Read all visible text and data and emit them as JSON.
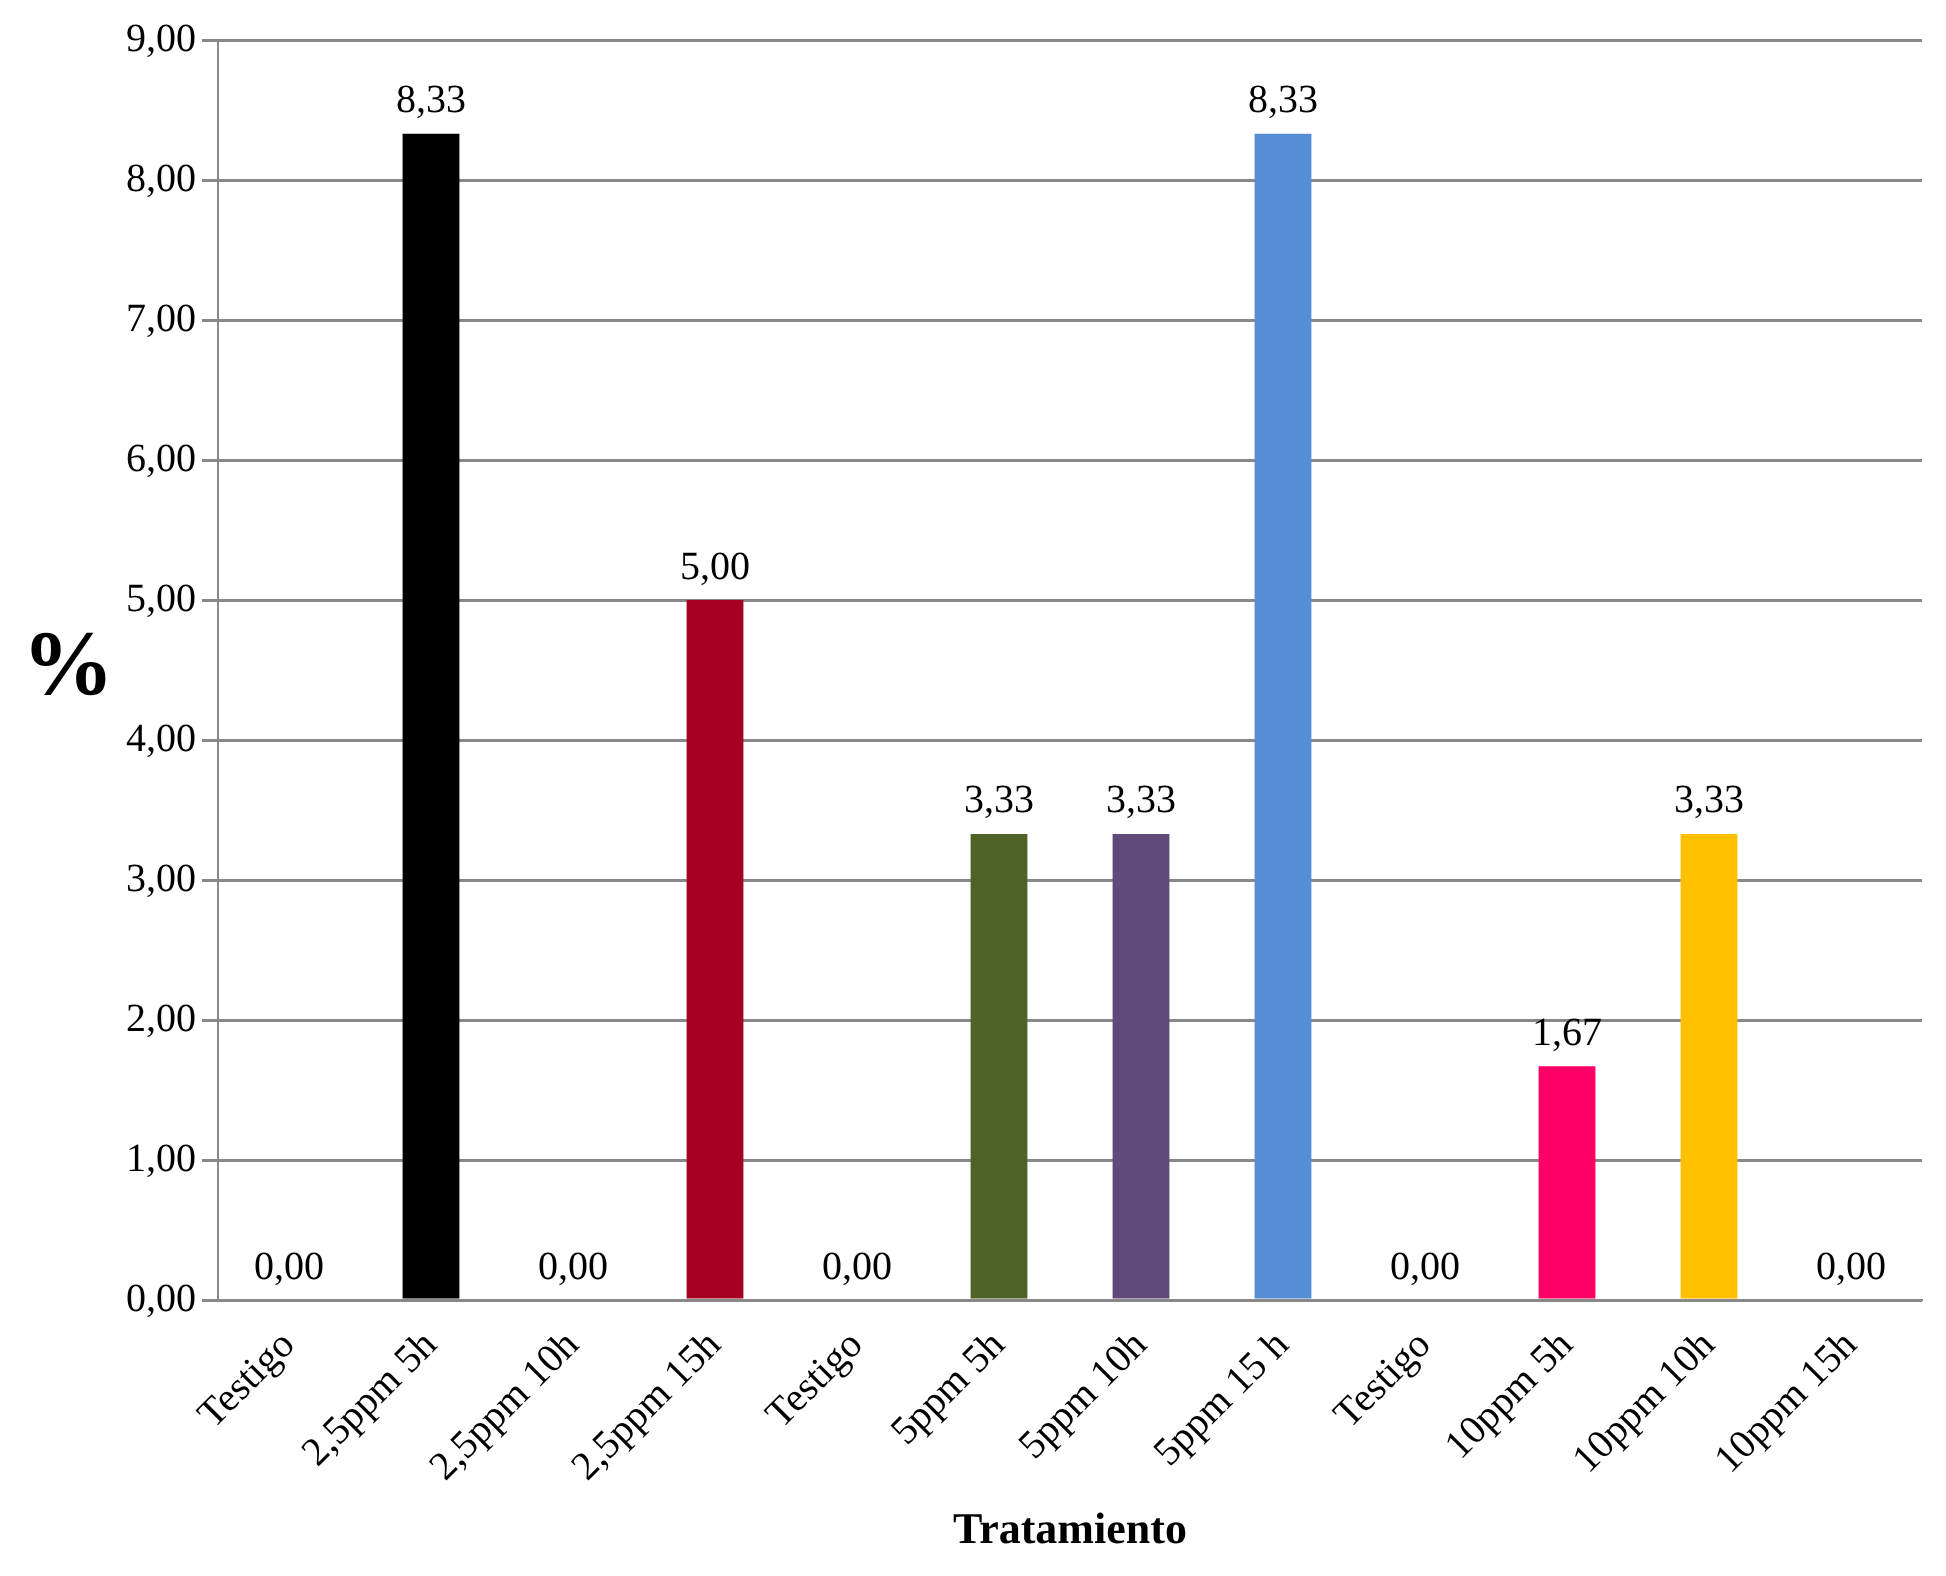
{
  "chart_data": {
    "type": "bar",
    "xlabel": "Tratamiento",
    "ylabel": "%",
    "categories": [
      "Testigo",
      "2,5ppm 5h",
      "2,5ppm 10h",
      "2,5ppm 15h",
      "Testigo",
      "5ppm 5h",
      "5ppm 10h",
      "5ppm 15 h",
      "Testigo",
      "10ppm 5h",
      "10ppm 10h",
      "10ppm 15h"
    ],
    "values": [
      0,
      8.33,
      0,
      5,
      0,
      3.33,
      3.33,
      8.33,
      0,
      1.67,
      3.33,
      0
    ],
    "colors": [
      "#c00000",
      "#000000",
      "#d0803a",
      "#a50021",
      "#c00000",
      "#4f6228",
      "#604a7b",
      "#558ed5",
      "#c00000",
      "#ff0066",
      "#ffc000",
      "#31b6d0"
    ],
    "value_labels": [
      "0,00",
      "8,33",
      "0,00",
      "5,00",
      "0,00",
      "3,33",
      "3,33",
      "8,33",
      "0,00",
      "1,67",
      "3,33",
      "0,00"
    ],
    "ylim": [
      0,
      9
    ],
    "yticks": [
      {
        "value": 0,
        "label": "0,00"
      },
      {
        "value": 1,
        "label": "1,00"
      },
      {
        "value": 2,
        "label": "2,00"
      },
      {
        "value": 3,
        "label": "3,00"
      },
      {
        "value": 4,
        "label": "4,00"
      },
      {
        "value": 5,
        "label": "5,00"
      },
      {
        "value": 6,
        "label": "6,00"
      },
      {
        "value": 7,
        "label": "7,00"
      },
      {
        "value": 8,
        "label": "8,00"
      },
      {
        "value": 9,
        "label": "9,00"
      }
    ],
    "grid": "y",
    "legend": false
  }
}
